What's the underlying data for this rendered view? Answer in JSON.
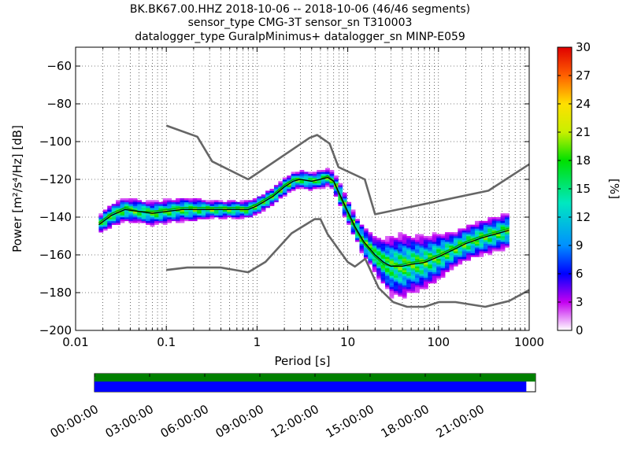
{
  "chart_data": [
    {
      "type": "heatmap",
      "title_lines": [
        "BK.BK67.00.HHZ   2018-10-06 -- 2018-10-06  (46/46 segments)",
        "sensor_type CMG-3T sensor_sn T310003",
        "datalogger_type GuralpMinimus+ datalogger_sn MINP-E059"
      ],
      "xlabel": "Period [s]",
      "ylabel": "Power [m²/s⁴/Hz] [dB]",
      "xscale": "log",
      "xlim": [
        0.01,
        1000
      ],
      "ylim": [
        -200,
        -50
      ],
      "grid": true,
      "xticks": [
        0.01,
        0.1,
        1,
        10,
        100,
        1000
      ],
      "xtick_labels": [
        "0.01",
        "0.1",
        "1",
        "10",
        "100",
        "1000"
      ],
      "yticks": [
        -60,
        -80,
        -100,
        -120,
        -140,
        -160,
        -180,
        -200
      ],
      "ytick_labels": [
        "−60",
        "−80",
        "−100",
        "−120",
        "−140",
        "−160",
        "−180",
        "−200"
      ],
      "colorbar": {
        "label": "[%]",
        "min": 0,
        "max": 30,
        "ticks": [
          0,
          3,
          6,
          9,
          12,
          15,
          18,
          21,
          24,
          27,
          30
        ],
        "tick_labels": [
          "0",
          "3",
          "6",
          "9",
          "12",
          "15",
          "18",
          "21",
          "24",
          "27",
          "30"
        ]
      },
      "series": [
        {
          "kind": "mean",
          "color": "#000000",
          "x": [
            0.018,
            0.025,
            0.035,
            0.05,
            0.07,
            0.1,
            0.15,
            0.2,
            0.3,
            0.5,
            0.8,
            1.0,
            1.5,
            2.0,
            2.5,
            3.0,
            4.0,
            5.0,
            6.0,
            7.0,
            8.0,
            10.0,
            12.0,
            15.0,
            20.0,
            25.0,
            30.0,
            40.0,
            50.0,
            70.0,
            100.0,
            150.0,
            200.0,
            300.0,
            500.0,
            600.0
          ],
          "y": [
            -144,
            -139,
            -136,
            -137,
            -138,
            -137,
            -136,
            -136,
            -136,
            -136,
            -136,
            -134,
            -129,
            -124,
            -121,
            -120,
            -121,
            -120,
            -119,
            -121,
            -127,
            -137,
            -145,
            -153,
            -160,
            -164,
            -166,
            -166,
            -165,
            -164,
            -161,
            -157,
            -154,
            -151,
            -148,
            -147
          ]
        },
        {
          "kind": "mode",
          "color": "#00b000",
          "x": [
            0.018,
            0.025,
            0.035,
            0.05,
            0.07,
            0.1,
            0.15,
            0.2,
            0.3,
            0.5,
            0.8,
            1.0,
            1.5,
            2.0,
            2.5,
            3.0,
            4.0,
            5.0,
            6.0,
            7.0,
            8.0,
            10.0,
            12.0,
            15.0,
            20.0,
            25.0,
            30.0,
            40.0,
            50.0,
            70.0,
            100.0,
            150.0,
            200.0,
            300.0,
            500.0,
            600.0
          ],
          "y": [
            -143,
            -138,
            -135,
            -137,
            -137,
            -136,
            -135,
            -135,
            -135,
            -135,
            -135,
            -133,
            -128,
            -123,
            -120,
            -120,
            -121,
            -120,
            -118,
            -121,
            -128,
            -138,
            -146,
            -154,
            -161,
            -165,
            -166,
            -165,
            -164,
            -163,
            -160,
            -156,
            -153,
            -150,
            -147,
            -146
          ]
        },
        {
          "kind": "nhnm",
          "color": "#666666",
          "x": [
            0.1,
            0.22,
            0.32,
            0.8,
            3.8,
            4.6,
            6.3,
            7.9,
            15.4,
            20.0,
            354.8,
            1000.0
          ],
          "y": [
            -91.5,
            -97.4,
            -110.5,
            -120.0,
            -98.0,
            -96.5,
            -101.0,
            -113.5,
            -120.0,
            -138.5,
            -126.0,
            -112.0
          ]
        },
        {
          "kind": "nlnm",
          "color": "#666666",
          "x": [
            0.1,
            0.17,
            0.4,
            0.8,
            1.24,
            2.4,
            4.3,
            5.0,
            6.0,
            10.0,
            12.0,
            15.6,
            21.9,
            31.6,
            45.0,
            70.0,
            101.0,
            154.0,
            328.0,
            600.0,
            1000.0
          ],
          "y": [
            -168.0,
            -166.7,
            -166.7,
            -169.2,
            -163.7,
            -148.6,
            -141.1,
            -141.1,
            -149.0,
            -163.8,
            -166.2,
            -162.1,
            -177.5,
            -185.0,
            -187.5,
            -187.5,
            -185.0,
            -185.0,
            -187.5,
            -184.4,
            -178.6
          ]
        }
      ],
      "histogram": {
        "x": [
          0.018,
          0.025,
          0.035,
          0.05,
          0.07,
          0.1,
          0.15,
          0.2,
          0.3,
          0.5,
          0.8,
          1.0,
          1.5,
          2.0,
          2.5,
          3.0,
          4.0,
          5.0,
          6.0,
          7.0,
          8.0,
          10.0,
          12.0,
          15.0,
          20.0,
          25.0,
          30.0,
          40.0,
          50.0,
          70.0,
          100.0,
          150.0,
          200.0,
          300.0,
          500.0,
          600.0
        ],
        "median_db": [
          -144,
          -139,
          -136,
          -137,
          -138,
          -137,
          -136,
          -136,
          -136,
          -136,
          -136,
          -134,
          -129,
          -124,
          -121,
          -120,
          -121,
          -120,
          -119,
          -121,
          -127,
          -137,
          -145,
          -153,
          -160,
          -164,
          -166,
          -166,
          -165,
          -164,
          -161,
          -157,
          -154,
          -151,
          -148,
          -147
        ],
        "spread_db": [
          3,
          4,
          4,
          4,
          4,
          4,
          4,
          4,
          3,
          3,
          3,
          3,
          3,
          3,
          3,
          3,
          3,
          3,
          3,
          3,
          4,
          4,
          4,
          5,
          6,
          8,
          10,
          11,
          10,
          9,
          8,
          6,
          6,
          6,
          6,
          6
        ]
      }
    },
    {
      "type": "timeline",
      "time_labels": [
        "00:00:00",
        "03:00:00",
        "06:00:00",
        "09:00:00",
        "12:00:00",
        "15:00:00",
        "18:00:00",
        "21:00:00"
      ],
      "range_hours": [
        0,
        24
      ],
      "tracks": [
        {
          "name": "",
          "color": "#008000",
          "coverage_hours": [
            0,
            24
          ]
        },
        {
          "name": "",
          "color": "#0000ff",
          "coverage_hours": [
            0,
            23.5
          ]
        }
      ]
    }
  ]
}
